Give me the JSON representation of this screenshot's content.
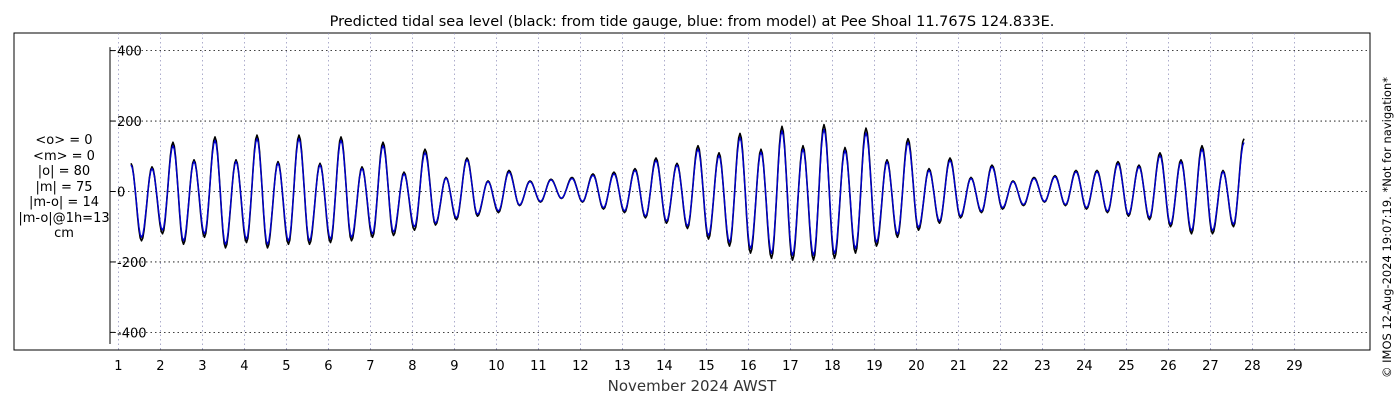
{
  "chart_data": {
    "type": "line",
    "title": "Predicted tidal sea level (black: from tide gauge, blue: from model) at Pee Shoal 11.767S 124.833E.",
    "xlabel": "November 2024 AWST",
    "ylabel": "",
    "ylim": [
      -450,
      450
    ],
    "xlim": [
      0.8,
      30.8
    ],
    "yticks": [
      -400,
      -200,
      0,
      200,
      400
    ],
    "ytick_labels": [
      "-400",
      "-200",
      "0",
      "200",
      "400"
    ],
    "xticks": [
      1,
      2,
      3,
      4,
      5,
      6,
      7,
      8,
      9,
      10,
      11,
      12,
      13,
      14,
      15,
      16,
      17,
      18,
      19,
      20,
      21,
      22,
      23,
      24,
      25,
      26,
      27,
      28,
      29
    ],
    "xtick_labels": [
      "1",
      "2",
      "3",
      "4",
      "5",
      "6",
      "7",
      "8",
      "9",
      "10",
      "11",
      "12",
      "13",
      "14",
      "15",
      "16",
      "17",
      "18",
      "19",
      "20",
      "21",
      "22",
      "23",
      "24",
      "25",
      "26",
      "27",
      "28",
      "29"
    ],
    "grid": true,
    "legend": "none",
    "series": [
      {
        "color": "#000000",
        "x_start": 1.3,
        "x_step": 0.25,
        "values": [
          80,
          -140,
          70,
          -120,
          140,
          -150,
          90,
          -130,
          155,
          -160,
          90,
          -145,
          160,
          -160,
          85,
          -150,
          160,
          -150,
          80,
          -145,
          155,
          -140,
          70,
          -130,
          140,
          -125,
          55,
          -110,
          120,
          -95,
          40,
          -80,
          95,
          -70,
          30,
          -60,
          60,
          -40,
          30,
          -30,
          35,
          -20,
          40,
          -30,
          50,
          -50,
          55,
          -60,
          65,
          -75,
          95,
          -90,
          80,
          -105,
          130,
          -135,
          110,
          -155,
          165,
          -175,
          120,
          -190,
          185,
          -195,
          130,
          -195,
          190,
          -190,
          125,
          -175,
          180,
          -155,
          90,
          -130,
          150,
          -110,
          65,
          -90,
          95,
          -75,
          40,
          -60,
          75,
          -50,
          30,
          -40,
          40,
          -30,
          45,
          -40,
          60,
          -50,
          60,
          -60,
          85,
          -70,
          75,
          -80,
          110,
          -100,
          90,
          -120,
          130,
          -120,
          60,
          -100,
          150
        ]
      },
      {
        "color": "#0000cc",
        "x_start": 1.3,
        "x_step": 0.25,
        "values": [
          75,
          -130,
          65,
          -110,
          130,
          -140,
          85,
          -120,
          145,
          -150,
          85,
          -135,
          150,
          -150,
          80,
          -140,
          150,
          -140,
          75,
          -135,
          145,
          -130,
          65,
          -120,
          130,
          -115,
          50,
          -100,
          110,
          -90,
          38,
          -75,
          90,
          -65,
          28,
          -55,
          55,
          -38,
          28,
          -28,
          33,
          -19,
          37,
          -28,
          46,
          -46,
          50,
          -55,
          60,
          -70,
          88,
          -84,
          75,
          -98,
          120,
          -125,
          102,
          -144,
          153,
          -162,
          112,
          -176,
          172,
          -181,
          120,
          -181,
          176,
          -176,
          116,
          -162,
          166,
          -144,
          84,
          -121,
          139,
          -102,
          60,
          -84,
          88,
          -70,
          37,
          -56,
          70,
          -46,
          28,
          -37,
          37,
          -28,
          42,
          -37,
          56,
          -46,
          56,
          -56,
          79,
          -65,
          70,
          -74,
          102,
          -93,
          84,
          -111,
          120,
          -111,
          56,
          -93,
          139
        ]
      }
    ],
    "stats": {
      "lines": [
        "<o> = 0",
        "<m> = 0",
        "|o| = 80",
        "|m| = 75",
        "|m-o| = 14",
        "|m-o|@1h=13",
        "cm"
      ]
    },
    "side_note": "© IMOS 12-Aug-2024 19:07:19. *Not for navigation*"
  }
}
